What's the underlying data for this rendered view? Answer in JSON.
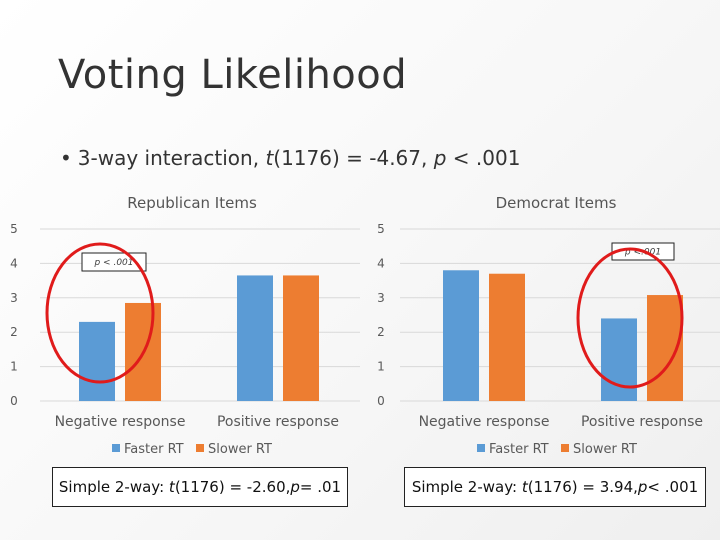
{
  "slide": {
    "title": "Voting Likelihood",
    "bullet": {
      "prefix": "3-way interaction, ",
      "t": "t",
      "mid": "(1176) = -4.67, ",
      "p": "p",
      "suffix": " < .001"
    }
  },
  "chart_data": [
    {
      "type": "bar",
      "title": "Republican Items",
      "categories": [
        "Negative response",
        "Positive response"
      ],
      "series": [
        {
          "name": "Faster RT",
          "color": "#5B9BD5",
          "values": [
            2.3,
            3.65
          ]
        },
        {
          "name": "Slower RT",
          "color": "#ED7D31",
          "values": [
            2.85,
            3.65
          ]
        }
      ],
      "ylim": [
        0,
        5
      ],
      "yticks": [
        0,
        1,
        2,
        3,
        4,
        5
      ],
      "legend": "bottom",
      "annotation": {
        "text": "p < .001",
        "target_category": "Negative response"
      },
      "simple_effect": {
        "prefix": "Simple 2-way: ",
        "t": "t",
        "mid": "(1176) = -2.60, ",
        "p": "p",
        "suffix": " = .01"
      }
    },
    {
      "type": "bar",
      "title": "Democrat Items",
      "categories": [
        "Negative response",
        "Positive response"
      ],
      "series": [
        {
          "name": "Faster RT",
          "color": "#5B9BD5",
          "values": [
            3.8,
            2.4
          ]
        },
        {
          "name": "Slower RT",
          "color": "#ED7D31",
          "values": [
            3.7,
            3.08
          ]
        }
      ],
      "ylim": [
        0,
        5
      ],
      "yticks": [
        0,
        1,
        2,
        3,
        4,
        5
      ],
      "legend": "bottom",
      "annotation": {
        "text": "p <.001",
        "target_category": "Positive response"
      },
      "simple_effect": {
        "prefix": "Simple 2-way: ",
        "t": "t",
        "mid": "(1176) = 3.94, ",
        "p": "p",
        "suffix": " < .001"
      }
    }
  ],
  "colors": {
    "circle": "#E01B1B",
    "faster": "#5B9BD5",
    "slower": "#ED7D31"
  }
}
